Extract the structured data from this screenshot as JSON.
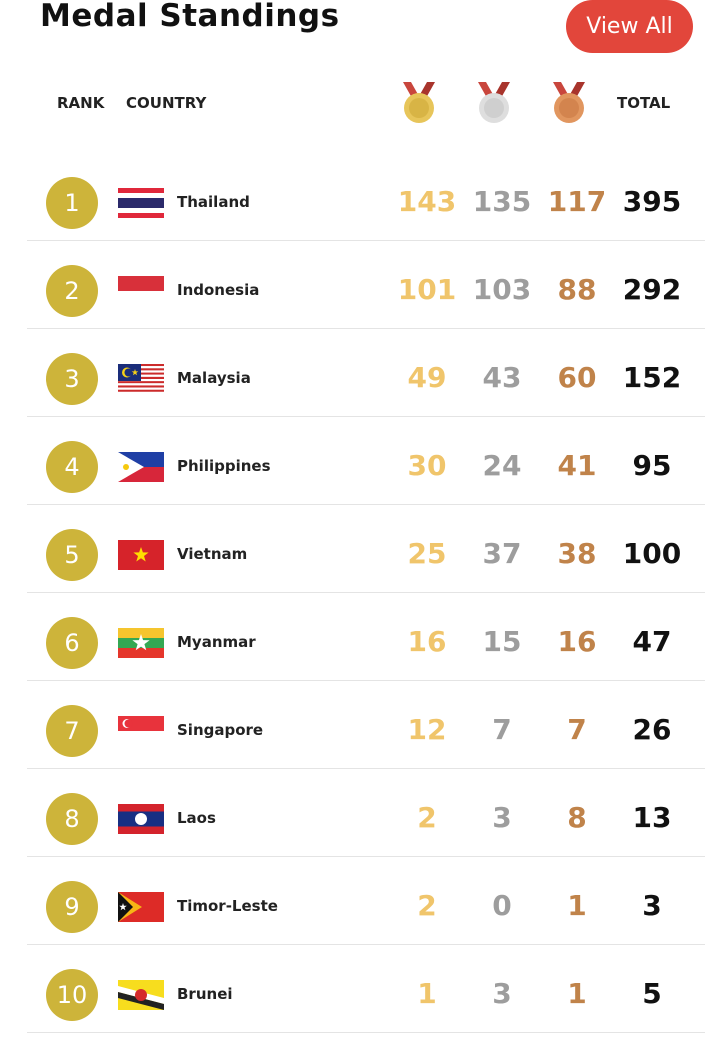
{
  "header": {
    "title": "Medal Standings",
    "button": "View All"
  },
  "table": {
    "columns": {
      "rank": "RANK",
      "country": "COUNTRY",
      "total": "TOTAL"
    },
    "rows": [
      [
        1,
        "Thailand",
        143,
        135,
        117,
        395
      ],
      [
        2,
        "Indonesia",
        101,
        103,
        88,
        292
      ],
      [
        3,
        "Malaysia",
        49,
        43,
        60,
        152
      ],
      [
        4,
        "Philippines",
        30,
        24,
        41,
        95
      ],
      [
        5,
        "Vietnam",
        25,
        37,
        38,
        100
      ],
      [
        6,
        "Myanmar",
        16,
        15,
        16,
        47
      ],
      [
        7,
        "Singapore",
        12,
        7,
        7,
        26
      ],
      [
        8,
        "Laos",
        2,
        3,
        8,
        13
      ],
      [
        9,
        "Timor-Leste",
        2,
        0,
        1,
        3
      ],
      [
        10,
        "Brunei",
        1,
        3,
        1,
        5
      ]
    ]
  }
}
